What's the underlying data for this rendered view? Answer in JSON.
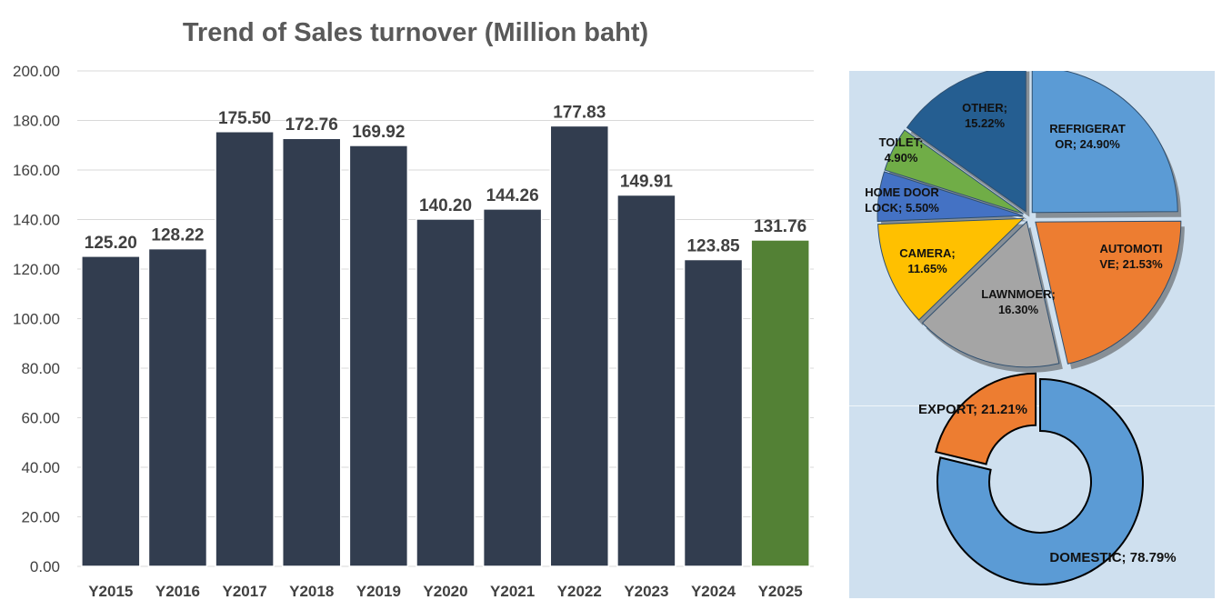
{
  "chart_data": [
    {
      "type": "bar",
      "title": "Trend of Sales turnover (Million baht)",
      "categories": [
        "Y2015",
        "Y2016",
        "Y2017",
        "Y2018",
        "Y2019",
        "Y2020",
        "Y2021",
        "Y2022",
        "Y2023",
        "Y2024",
        "Y2025"
      ],
      "values": [
        125.2,
        128.22,
        175.5,
        172.76,
        169.92,
        140.2,
        144.26,
        177.83,
        149.91,
        123.85,
        131.76
      ],
      "value_labels": [
        "125.20",
        "128.22",
        "175.50",
        "172.76",
        "169.92",
        "140.20",
        "144.26",
        "177.83",
        "149.91",
        "123.85",
        "131.76"
      ],
      "ylim": [
        0,
        200
      ],
      "yticks": [
        "0.00",
        "20.00",
        "40.00",
        "60.00",
        "80.00",
        "100.00",
        "120.00",
        "140.00",
        "160.00",
        "180.00",
        "200.00"
      ],
      "grid": true,
      "colors": {
        "bar": "#323d4f",
        "highlight": "#538135",
        "grid": "#d9d9d9",
        "title": "#595959",
        "labels": "#404040"
      },
      "highlight_category": "Y2025"
    },
    {
      "type": "pie",
      "slices": [
        {
          "label_lines": [
            "REFRIGERAT",
            "OR; 24.90%"
          ],
          "value": 24.9,
          "color": "#5b9bd5"
        },
        {
          "label_lines": [
            "AUTOMOTI",
            "VE; 21.53%"
          ],
          "value": 21.53,
          "color": "#ed7d31"
        },
        {
          "label_lines": [
            "LAWNMOER;",
            "16.30%"
          ],
          "value": 16.3,
          "color": "#a5a5a5"
        },
        {
          "label_lines": [
            "CAMERA;",
            "11.65%"
          ],
          "value": 11.65,
          "color": "#ffc000"
        },
        {
          "label_lines": [
            "HOME DOOR",
            "LOCK; 5.50%"
          ],
          "value": 5.5,
          "color": "#4472c4"
        },
        {
          "label_lines": [
            "TOILET;",
            "4.90%"
          ],
          "value": 4.9,
          "color": "#70ad47"
        },
        {
          "label_lines": [
            "OTHER;",
            "15.22%"
          ],
          "value": 15.22,
          "color": "#255e91"
        }
      ],
      "exploded": true
    },
    {
      "type": "pie",
      "style": "doughnut",
      "slices": [
        {
          "label": "DOMESTIC; 78.79%",
          "value": 78.79,
          "color": "#5b9bd5"
        },
        {
          "label": "EXPORT; 21.21%",
          "value": 21.21,
          "color": "#ed7d31"
        }
      ]
    }
  ]
}
